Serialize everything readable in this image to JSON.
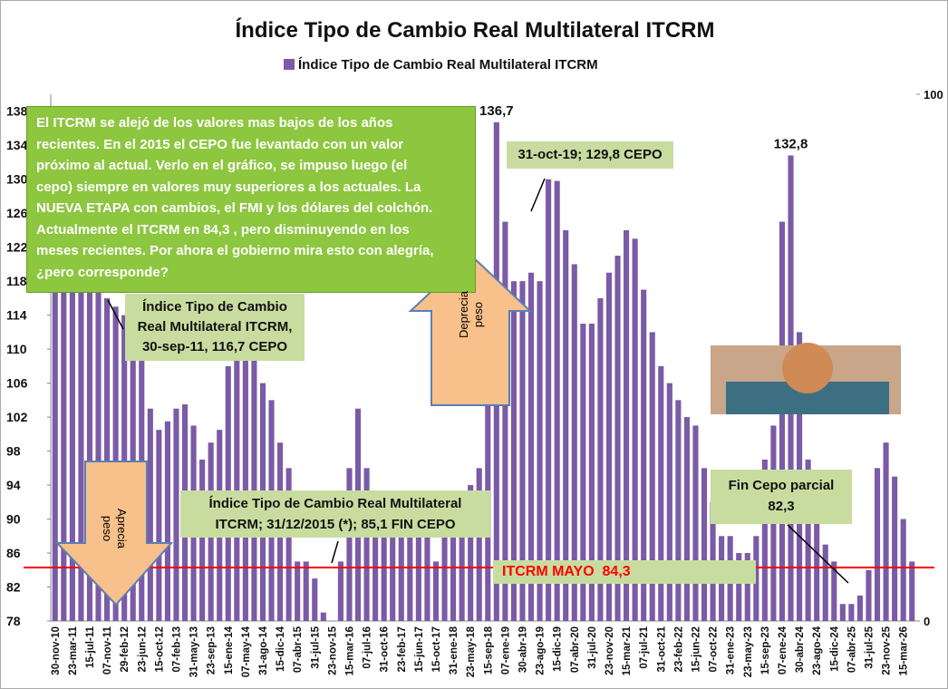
{
  "chart_data": {
    "type": "bar",
    "title": "Índice Tipo de Cambio Real Multilateral ITCRM",
    "series": [
      {
        "name": "Índice Tipo de Cambio Real Multilateral  ITCRM",
        "color": "#7b5aa6",
        "values": [
          120,
          120,
          121,
          119,
          118,
          117,
          116,
          115,
          114,
          112,
          110,
          103,
          100.5,
          101.5,
          103,
          103.5,
          101,
          97,
          99,
          100.5,
          108,
          110,
          110,
          109,
          106,
          104,
          99,
          96,
          85,
          85,
          83,
          79,
          78,
          85,
          96,
          103,
          96,
          93,
          92,
          92,
          91,
          91,
          90,
          89,
          85,
          89,
          90,
          92,
          94,
          96,
          110,
          136.7,
          125,
          118,
          118,
          119,
          118,
          130,
          129.8,
          124,
          120,
          113,
          113,
          116,
          119,
          121,
          124,
          123,
          117,
          112,
          108,
          106,
          104,
          102,
          101,
          96,
          92,
          88,
          88,
          86,
          86,
          88,
          97,
          101,
          125,
          132.8,
          112,
          97,
          92,
          87,
          85,
          80,
          80,
          81,
          84,
          96,
          99,
          95,
          90,
          85
        ],
        "value_labels": [
          null,
          null,
          null,
          null,
          null,
          null,
          null,
          null,
          null,
          null,
          null,
          null,
          null,
          null,
          null,
          null,
          null,
          null,
          null,
          null,
          null,
          null,
          null,
          null,
          null,
          null,
          null,
          null,
          null,
          null,
          null,
          null,
          null,
          null,
          null,
          null,
          null,
          null,
          null,
          null,
          null,
          null,
          null,
          null,
          null,
          null,
          null,
          null,
          null,
          null,
          null,
          "136,7",
          null,
          null,
          null,
          null,
          null,
          null,
          null,
          null,
          null,
          null,
          null,
          null,
          null,
          null,
          null,
          null,
          null,
          null,
          null,
          null,
          null,
          null,
          null,
          null,
          null,
          null,
          null,
          null,
          null,
          null,
          null,
          null,
          null,
          "132,8",
          null,
          null,
          null,
          null,
          null,
          null,
          null,
          null,
          null,
          null,
          null,
          null,
          null,
          null
        ]
      }
    ],
    "categories": [
      "30-nov-10",
      null,
      "23-mar-11",
      null,
      "15-jul-11",
      null,
      "07-nov-11",
      null,
      "29-feb-12",
      null,
      "23-jun-12",
      null,
      "15-oct-12",
      null,
      "07-feb-13",
      null,
      "31-may-13",
      null,
      "23-sep-13",
      null,
      "15-ene-14",
      null,
      "07-may-14",
      null,
      "31-ago-14",
      null,
      "15-dic-14",
      null,
      "07-abr-15",
      null,
      "31-jul-15",
      null,
      "23-nov-15",
      null,
      "15-mar-16",
      null,
      "07-jul-16",
      null,
      "31-oct-16",
      null,
      "23-feb-17",
      null,
      "15-jun-17",
      null,
      "15-oct-17",
      null,
      "31-ene-18",
      null,
      "23-may-18",
      null,
      "15-sep-18",
      null,
      "07-ene-19",
      null,
      "30-abr-19",
      null,
      "23-ago-19",
      null,
      "15-dic-19",
      null,
      "07-abr-20",
      null,
      "31-jul-20",
      null,
      "23-nov-20",
      null,
      "15-mar-21",
      null,
      "07-jul-21",
      null,
      "31-oct-21",
      null,
      "23-feb-22",
      null,
      "15-jun-22",
      null,
      "07-oct-22",
      null,
      "31-ene-23",
      null,
      "23-may-23",
      null,
      "15-sep-23",
      null,
      "07-ene-24",
      null,
      "30-abr-24",
      null,
      "23-ago-24",
      null,
      "15-dic-24",
      null,
      "07-abr-25",
      null,
      "31-jul-25",
      null,
      "23-nov-25",
      null,
      "15-mar-26",
      null
    ],
    "ylim": [
      78,
      140
    ],
    "yticks": [
      78,
      82,
      86,
      90,
      94,
      98,
      102,
      106,
      110,
      114,
      118,
      122,
      126,
      130,
      134,
      138
    ],
    "y2lim": [
      0,
      100
    ],
    "y2ticks": [
      0,
      100
    ],
    "legend": "top",
    "reference_line": {
      "value": 84.3,
      "label": "ITCRM MAYO  84,3",
      "color": "#ff0000"
    },
    "annotations": [
      {
        "lines": [
          "El ITCRM se alejó de los valores mas bajos de los años",
          "recientes. En el 2015 el CEPO fue levantado con un valor",
          "próximo al actual. Verlo en el gráfico, se impuso luego (el",
          "cepo) siempre en valores muy superiores a los actuales. La",
          "NUEVA ETAPA con cambios, el FMI y los dólares del colchón.",
          "Actualmente el ITCRM en 84,3 , pero disminuyendo en los",
          "meses recientes. Por ahora el gobierno mira esto con alegría,",
          "¿pero corresponde?"
        ]
      },
      {
        "lines": [
          "Índice Tipo de Cambio",
          "Real Multilateral  ITCRM,",
          "30-sep-11, 116,7 CEPO"
        ]
      },
      {
        "lines": [
          "31-oct-19; 129,8 CEPO"
        ]
      },
      {
        "lines": [
          "Índice Tipo de Cambio Real Multilateral",
          "ITCRM; 31/12/2015 (*); 85,1 FIN CEPO"
        ]
      },
      {
        "lines": [
          "Fin Cepo parcial",
          "82,3"
        ]
      },
      {
        "lines": [
          "Deprecia",
          "peso"
        ]
      },
      {
        "lines": [
          "Aprecia",
          "peso"
        ]
      }
    ]
  }
}
